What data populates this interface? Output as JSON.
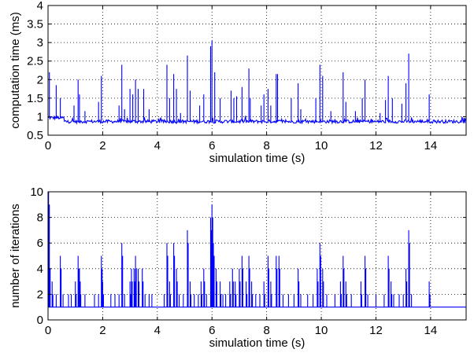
{
  "colors": {
    "series": "#0000ff",
    "axes": "#000000",
    "background": "#ffffff"
  },
  "chart_data": [
    {
      "type": "line",
      "title": "",
      "xlabel": "simulation time (s)",
      "ylabel": "computation time (ms)",
      "xlim": [
        0,
        15.3
      ],
      "ylim": [
        0.5,
        4
      ],
      "xticks": [
        0,
        2,
        4,
        6,
        8,
        10,
        12,
        14
      ],
      "xtick_labels": [
        "0",
        "2",
        "4",
        "6",
        "8",
        "10",
        "12",
        "14"
      ],
      "yticks": [
        0.5,
        1,
        1.5,
        2,
        2.5,
        3,
        3.5,
        4
      ],
      "ytick_labels": [
        "0.5",
        "1",
        "1.5",
        "2",
        "2.5",
        "3",
        "3.5",
        "4"
      ],
      "grid": true,
      "baseline": 0.87,
      "spikes": [
        {
          "x": 0.05,
          "y": 2.2
        },
        {
          "x": 0.3,
          "y": 1.85
        },
        {
          "x": 0.45,
          "y": 1.5
        },
        {
          "x": 0.95,
          "y": 1.3
        },
        {
          "x": 1.1,
          "y": 2.0
        },
        {
          "x": 1.15,
          "y": 1.6
        },
        {
          "x": 1.35,
          "y": 1.15
        },
        {
          "x": 1.85,
          "y": 1.4
        },
        {
          "x": 1.95,
          "y": 2.1
        },
        {
          "x": 2.6,
          "y": 1.3
        },
        {
          "x": 2.7,
          "y": 2.4
        },
        {
          "x": 2.8,
          "y": 1.2
        },
        {
          "x": 3.0,
          "y": 1.75
        },
        {
          "x": 3.1,
          "y": 1.6
        },
        {
          "x": 3.2,
          "y": 2.0
        },
        {
          "x": 3.3,
          "y": 1.75
        },
        {
          "x": 3.5,
          "y": 1.75
        },
        {
          "x": 3.7,
          "y": 1.2
        },
        {
          "x": 4.35,
          "y": 2.4
        },
        {
          "x": 4.45,
          "y": 1.5
        },
        {
          "x": 4.6,
          "y": 2.15
        },
        {
          "x": 4.7,
          "y": 1.75
        },
        {
          "x": 4.85,
          "y": 1.1
        },
        {
          "x": 5.1,
          "y": 2.65
        },
        {
          "x": 5.2,
          "y": 1.7
        },
        {
          "x": 5.55,
          "y": 1.3
        },
        {
          "x": 5.7,
          "y": 1.6
        },
        {
          "x": 5.95,
          "y": 2.9
        },
        {
          "x": 6.0,
          "y": 3.05
        },
        {
          "x": 6.1,
          "y": 2.2
        },
        {
          "x": 6.3,
          "y": 1.5
        },
        {
          "x": 6.7,
          "y": 1.7
        },
        {
          "x": 6.8,
          "y": 1.5
        },
        {
          "x": 6.9,
          "y": 1.55
        },
        {
          "x": 7.1,
          "y": 1.8
        },
        {
          "x": 7.35,
          "y": 2.3
        },
        {
          "x": 7.4,
          "y": 1.5
        },
        {
          "x": 7.8,
          "y": 1.3
        },
        {
          "x": 7.9,
          "y": 1.6
        },
        {
          "x": 8.05,
          "y": 1.75
        },
        {
          "x": 8.15,
          "y": 1.3
        },
        {
          "x": 8.35,
          "y": 2.15
        },
        {
          "x": 8.4,
          "y": 2.15
        },
        {
          "x": 8.9,
          "y": 1.5
        },
        {
          "x": 9.15,
          "y": 1.9
        },
        {
          "x": 9.25,
          "y": 1.2
        },
        {
          "x": 9.8,
          "y": 1.5
        },
        {
          "x": 9.95,
          "y": 2.4
        },
        {
          "x": 10.05,
          "y": 2.1
        },
        {
          "x": 10.35,
          "y": 1.15
        },
        {
          "x": 10.8,
          "y": 2.2
        },
        {
          "x": 10.9,
          "y": 1.4
        },
        {
          "x": 11.25,
          "y": 1.15
        },
        {
          "x": 11.5,
          "y": 1.5
        },
        {
          "x": 11.6,
          "y": 2.0
        },
        {
          "x": 12.15,
          "y": 1.1
        },
        {
          "x": 12.35,
          "y": 1.45
        },
        {
          "x": 12.45,
          "y": 2.1
        },
        {
          "x": 12.6,
          "y": 1.5
        },
        {
          "x": 12.95,
          "y": 1.35
        },
        {
          "x": 13.1,
          "y": 1.9
        },
        {
          "x": 13.2,
          "y": 2.7
        },
        {
          "x": 13.95,
          "y": 1.6
        }
      ]
    },
    {
      "type": "line",
      "title": "",
      "xlabel": "simulation time (s)",
      "ylabel": "number of iterations",
      "xlim": [
        0,
        15.3
      ],
      "ylim": [
        0,
        10
      ],
      "xticks": [
        0,
        2,
        4,
        6,
        8,
        10,
        12,
        14
      ],
      "xtick_labels": [
        "0",
        "2",
        "4",
        "6",
        "8",
        "10",
        "12",
        "14"
      ],
      "yticks": [
        0,
        2,
        4,
        6,
        8,
        10
      ],
      "ytick_labels": [
        "0",
        "2",
        "4",
        "6",
        "8",
        "10"
      ],
      "grid": true,
      "baseline": 1,
      "spikes": [
        {
          "x": 0.02,
          "y": 10
        },
        {
          "x": 0.05,
          "y": 5
        },
        {
          "x": 0.15,
          "y": 3
        },
        {
          "x": 0.3,
          "y": 2
        },
        {
          "x": 0.45,
          "y": 5
        },
        {
          "x": 0.55,
          "y": 2
        },
        {
          "x": 0.75,
          "y": 2
        },
        {
          "x": 0.85,
          "y": 2
        },
        {
          "x": 1.0,
          "y": 3
        },
        {
          "x": 1.1,
          "y": 5
        },
        {
          "x": 1.15,
          "y": 4
        },
        {
          "x": 1.2,
          "y": 2
        },
        {
          "x": 1.35,
          "y": 2
        },
        {
          "x": 1.7,
          "y": 2
        },
        {
          "x": 1.85,
          "y": 2
        },
        {
          "x": 1.95,
          "y": 5
        },
        {
          "x": 2.0,
          "y": 3
        },
        {
          "x": 2.3,
          "y": 2
        },
        {
          "x": 2.45,
          "y": 2
        },
        {
          "x": 2.6,
          "y": 2
        },
        {
          "x": 2.7,
          "y": 6
        },
        {
          "x": 2.8,
          "y": 2
        },
        {
          "x": 3.0,
          "y": 3
        },
        {
          "x": 3.05,
          "y": 4
        },
        {
          "x": 3.15,
          "y": 4
        },
        {
          "x": 3.2,
          "y": 5
        },
        {
          "x": 3.3,
          "y": 4
        },
        {
          "x": 3.45,
          "y": 4
        },
        {
          "x": 3.55,
          "y": 2
        },
        {
          "x": 3.7,
          "y": 2
        },
        {
          "x": 3.8,
          "y": 2
        },
        {
          "x": 4.25,
          "y": 2
        },
        {
          "x": 4.35,
          "y": 6
        },
        {
          "x": 4.45,
          "y": 3
        },
        {
          "x": 4.6,
          "y": 6
        },
        {
          "x": 4.7,
          "y": 4
        },
        {
          "x": 4.8,
          "y": 2
        },
        {
          "x": 4.95,
          "y": 2
        },
        {
          "x": 5.1,
          "y": 7
        },
        {
          "x": 5.2,
          "y": 3
        },
        {
          "x": 5.35,
          "y": 2
        },
        {
          "x": 5.5,
          "y": 2
        },
        {
          "x": 5.6,
          "y": 3
        },
        {
          "x": 5.7,
          "y": 4
        },
        {
          "x": 5.8,
          "y": 2
        },
        {
          "x": 5.95,
          "y": 8
        },
        {
          "x": 6.0,
          "y": 9
        },
        {
          "x": 6.05,
          "y": 6
        },
        {
          "x": 6.15,
          "y": 4
        },
        {
          "x": 6.3,
          "y": 3
        },
        {
          "x": 6.4,
          "y": 2
        },
        {
          "x": 6.5,
          "y": 2
        },
        {
          "x": 6.65,
          "y": 3
        },
        {
          "x": 6.75,
          "y": 4
        },
        {
          "x": 6.85,
          "y": 3
        },
        {
          "x": 7.0,
          "y": 4
        },
        {
          "x": 7.1,
          "y": 5
        },
        {
          "x": 7.25,
          "y": 3
        },
        {
          "x": 7.35,
          "y": 5
        },
        {
          "x": 7.45,
          "y": 3
        },
        {
          "x": 7.6,
          "y": 2
        },
        {
          "x": 7.75,
          "y": 2
        },
        {
          "x": 7.9,
          "y": 3
        },
        {
          "x": 8.05,
          "y": 5
        },
        {
          "x": 8.15,
          "y": 3
        },
        {
          "x": 8.35,
          "y": 5
        },
        {
          "x": 8.45,
          "y": 5
        },
        {
          "x": 8.6,
          "y": 2
        },
        {
          "x": 8.8,
          "y": 2
        },
        {
          "x": 9.0,
          "y": 2
        },
        {
          "x": 9.15,
          "y": 4
        },
        {
          "x": 9.25,
          "y": 2
        },
        {
          "x": 9.5,
          "y": 2
        },
        {
          "x": 9.7,
          "y": 2
        },
        {
          "x": 9.85,
          "y": 4
        },
        {
          "x": 9.95,
          "y": 6
        },
        {
          "x": 10.05,
          "y": 4
        },
        {
          "x": 10.2,
          "y": 2
        },
        {
          "x": 10.5,
          "y": 2
        },
        {
          "x": 10.7,
          "y": 3
        },
        {
          "x": 10.8,
          "y": 5
        },
        {
          "x": 10.9,
          "y": 3
        },
        {
          "x": 11.1,
          "y": 2
        },
        {
          "x": 11.45,
          "y": 3
        },
        {
          "x": 11.6,
          "y": 5
        },
        {
          "x": 11.7,
          "y": 2
        },
        {
          "x": 12.0,
          "y": 2
        },
        {
          "x": 12.3,
          "y": 2
        },
        {
          "x": 12.45,
          "y": 5
        },
        {
          "x": 12.55,
          "y": 3
        },
        {
          "x": 12.65,
          "y": 2
        },
        {
          "x": 12.85,
          "y": 2
        },
        {
          "x": 13.0,
          "y": 2
        },
        {
          "x": 13.1,
          "y": 4
        },
        {
          "x": 13.2,
          "y": 7
        },
        {
          "x": 13.3,
          "y": 2
        },
        {
          "x": 13.95,
          "y": 3
        }
      ]
    }
  ]
}
